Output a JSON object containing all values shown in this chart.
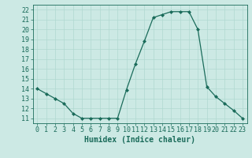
{
  "x": [
    0,
    1,
    2,
    3,
    4,
    5,
    6,
    7,
    8,
    9,
    10,
    11,
    12,
    13,
    14,
    15,
    16,
    17,
    18,
    19,
    20,
    21,
    22,
    23
  ],
  "y": [
    14,
    13.5,
    13,
    12.5,
    11.5,
    11,
    11,
    11,
    11,
    11,
    13.9,
    16.5,
    18.8,
    21.2,
    21.5,
    21.8,
    21.8,
    21.8,
    20,
    14.2,
    13.2,
    12.5,
    11.8,
    11
  ],
  "line_color": "#1a6b5a",
  "marker": "D",
  "markersize": 2.0,
  "linewidth": 0.9,
  "bg_color": "#cce9e4",
  "grid_color": "#b0d8d0",
  "xlabel": "Humidex (Indice chaleur)",
  "xlabel_fontsize": 7,
  "tick_fontsize": 6,
  "xlim": [
    -0.5,
    23.5
  ],
  "ylim": [
    10.5,
    22.5
  ],
  "yticks": [
    11,
    12,
    13,
    14,
    15,
    16,
    17,
    18,
    19,
    20,
    21,
    22
  ],
  "xticks": [
    0,
    1,
    2,
    3,
    4,
    5,
    6,
    7,
    8,
    9,
    10,
    11,
    12,
    13,
    14,
    15,
    16,
    17,
    18,
    19,
    20,
    21,
    22,
    23
  ]
}
